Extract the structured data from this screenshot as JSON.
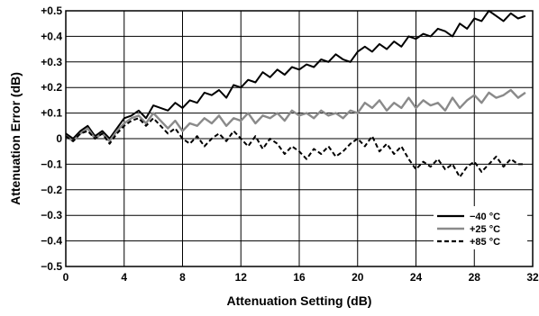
{
  "chart_data": {
    "type": "line",
    "title": "",
    "xlabel": "Attenuation Setting (dB)",
    "ylabel": "Attenuation Error (dB)",
    "xlim": [
      0,
      32
    ],
    "ylim": [
      -0.5,
      0.5
    ],
    "xticks": [
      0,
      4,
      8,
      12,
      16,
      20,
      24,
      28,
      32
    ],
    "xtick_labels": [
      "0",
      "4",
      "8",
      "12",
      "16",
      "20",
      "24",
      "28",
      "32"
    ],
    "yticks": [
      0.5,
      0.4,
      0.3,
      0.2,
      0.1,
      0,
      -0.1,
      -0.2,
      -0.3,
      -0.4,
      -0.5
    ],
    "ytick_labels": [
      "+0.5",
      "+0.4",
      "+0.3",
      "+0.2",
      "+0.1",
      "0",
      "−0.1",
      "−0.2",
      "−0.3",
      "−0.4",
      "−0.5"
    ],
    "grid": true,
    "legend": "bottom-right",
    "series": [
      {
        "name": "−40 °C",
        "color": "#000000",
        "dash": "solid",
        "x": [
          0,
          0.5,
          1,
          1.5,
          2,
          2.5,
          3,
          3.5,
          4,
          4.5,
          5,
          5.5,
          6,
          6.5,
          7,
          7.5,
          8,
          8.5,
          9,
          9.5,
          10,
          10.5,
          11,
          11.5,
          12,
          12.5,
          13,
          13.5,
          14,
          14.5,
          15,
          15.5,
          16,
          16.5,
          17,
          17.5,
          18,
          18.5,
          19,
          19.5,
          20,
          20.5,
          21,
          21.5,
          22,
          22.5,
          23,
          23.5,
          24,
          24.5,
          25,
          25.5,
          26,
          26.5,
          27,
          27.5,
          28,
          28.5,
          29,
          29.5,
          30,
          30.5,
          31,
          31.5
        ],
        "y": [
          0.02,
          0.0,
          0.03,
          0.05,
          0.01,
          0.03,
          0.0,
          0.04,
          0.08,
          0.09,
          0.11,
          0.08,
          0.13,
          0.12,
          0.11,
          0.14,
          0.12,
          0.15,
          0.14,
          0.18,
          0.17,
          0.19,
          0.16,
          0.21,
          0.2,
          0.23,
          0.22,
          0.26,
          0.24,
          0.27,
          0.25,
          0.28,
          0.27,
          0.29,
          0.28,
          0.31,
          0.3,
          0.33,
          0.31,
          0.3,
          0.34,
          0.36,
          0.34,
          0.37,
          0.35,
          0.38,
          0.36,
          0.4,
          0.39,
          0.41,
          0.4,
          0.43,
          0.42,
          0.4,
          0.45,
          0.43,
          0.47,
          0.46,
          0.5,
          0.48,
          0.46,
          0.49,
          0.47,
          0.48
        ]
      },
      {
        "name": "+25 °C",
        "color": "#8a8a8a",
        "dash": "solid",
        "x": [
          0,
          0.5,
          1,
          1.5,
          2,
          2.5,
          3,
          3.5,
          4,
          4.5,
          5,
          5.5,
          6,
          6.5,
          7,
          7.5,
          8,
          8.5,
          9,
          9.5,
          10,
          10.5,
          11,
          11.5,
          12,
          12.5,
          13,
          13.5,
          14,
          14.5,
          15,
          15.5,
          16,
          16.5,
          17,
          17.5,
          18,
          18.5,
          19,
          19.5,
          20,
          20.5,
          21,
          21.5,
          22,
          22.5,
          23,
          23.5,
          24,
          24.5,
          25,
          25.5,
          26,
          26.5,
          27,
          27.5,
          28,
          28.5,
          29,
          29.5,
          30,
          30.5,
          31,
          31.5
        ],
        "y": [
          0.01,
          -0.01,
          0.02,
          0.04,
          0.0,
          0.02,
          -0.01,
          0.03,
          0.06,
          0.08,
          0.09,
          0.06,
          0.1,
          0.07,
          0.04,
          0.07,
          0.03,
          0.06,
          0.05,
          0.08,
          0.06,
          0.09,
          0.05,
          0.08,
          0.07,
          0.1,
          0.06,
          0.09,
          0.08,
          0.1,
          0.07,
          0.11,
          0.09,
          0.1,
          0.08,
          0.11,
          0.09,
          0.1,
          0.08,
          0.11,
          0.1,
          0.14,
          0.12,
          0.15,
          0.11,
          0.14,
          0.12,
          0.16,
          0.12,
          0.15,
          0.13,
          0.14,
          0.11,
          0.16,
          0.12,
          0.15,
          0.17,
          0.14,
          0.18,
          0.16,
          0.17,
          0.19,
          0.16,
          0.18
        ]
      },
      {
        "name": "+85 °C",
        "color": "#000000",
        "dash": "dashed",
        "x": [
          0,
          0.5,
          1,
          1.5,
          2,
          2.5,
          3,
          3.5,
          4,
          4.5,
          5,
          5.5,
          6,
          6.5,
          7,
          7.5,
          8,
          8.5,
          9,
          9.5,
          10,
          10.5,
          11,
          11.5,
          12,
          12.5,
          13,
          13.5,
          14,
          14.5,
          15,
          15.5,
          16,
          16.5,
          17,
          17.5,
          18,
          18.5,
          19,
          19.5,
          20,
          20.5,
          21,
          21.5,
          22,
          22.5,
          23,
          23.5,
          24,
          24.5,
          25,
          25.5,
          26,
          26.5,
          27,
          27.5,
          28,
          28.5,
          29,
          29.5,
          30,
          30.5,
          31,
          31.5
        ],
        "y": [
          0.01,
          -0.01,
          0.02,
          0.03,
          0.0,
          0.02,
          -0.02,
          0.02,
          0.05,
          0.07,
          0.08,
          0.05,
          0.08,
          0.05,
          0.02,
          0.04,
          0.0,
          -0.02,
          0.01,
          -0.03,
          0.0,
          0.02,
          -0.01,
          0.03,
          0.0,
          -0.03,
          0.01,
          -0.04,
          0.0,
          -0.02,
          -0.06,
          -0.03,
          -0.05,
          -0.08,
          -0.04,
          -0.06,
          -0.03,
          -0.07,
          -0.05,
          -0.02,
          0.0,
          -0.03,
          0.01,
          -0.05,
          -0.02,
          -0.06,
          -0.03,
          -0.08,
          -0.12,
          -0.09,
          -0.11,
          -0.08,
          -0.12,
          -0.1,
          -0.15,
          -0.11,
          -0.09,
          -0.13,
          -0.1,
          -0.07,
          -0.11,
          -0.08,
          -0.1,
          -0.1
        ]
      }
    ]
  }
}
